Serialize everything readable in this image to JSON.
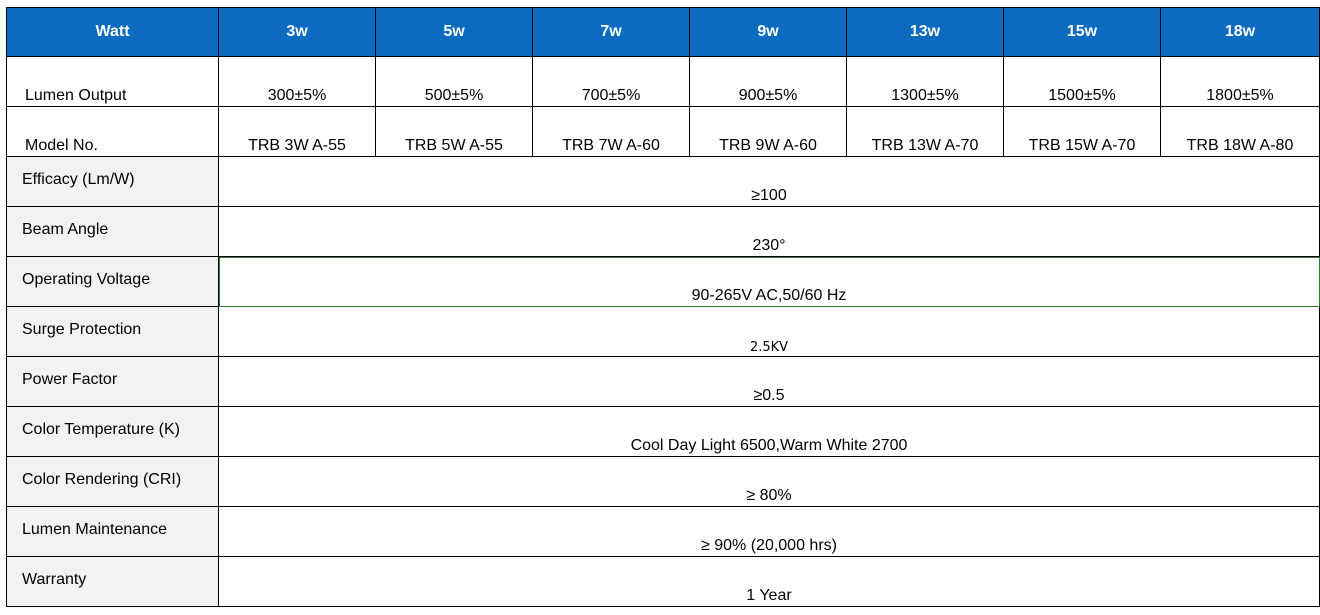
{
  "header": {
    "label": "Watt",
    "columns": [
      "3w",
      "5w",
      "7w",
      "9w",
      "13w",
      "15w",
      "18w"
    ]
  },
  "lumen_row": {
    "label": "Lumen Output",
    "values": [
      "300±5%",
      "500±5%",
      "700±5%",
      "900±5%",
      "1300±5%",
      "1500±5%",
      "1800±5%"
    ]
  },
  "model_row": {
    "label": "Model No.",
    "values": [
      "TRB 3W A-55",
      "TRB 5W A-55",
      "TRB 7W A-60",
      "TRB 9W A-60",
      "TRB 13W A-70",
      "TRB 15W A-70",
      "TRB 18W A-80"
    ]
  },
  "specs": [
    {
      "label": "Efficacy (Lm/W)",
      "value": "≥100"
    },
    {
      "label": "Beam Angle",
      "value": "230°"
    },
    {
      "label": "Operating Voltage",
      "value": "90-265V AC,50/60 Hz"
    },
    {
      "label": "Surge Protection",
      "value": "2.5KV"
    },
    {
      "label": "Power Factor",
      "value": "≥0.5"
    },
    {
      "label": "Color Temperature (K)",
      "value": "Cool Day Light 6500,Warm White 2700"
    },
    {
      "label": "Color Rendering (CRI)",
      "value": "≥ 80%"
    },
    {
      "label": "Lumen Maintenance",
      "value": "≥ 90% (20,000 hrs)"
    },
    {
      "label": "Warranty",
      "value": "1 Year"
    }
  ],
  "colors": {
    "header_bg": "#0a6bc1",
    "label_bg": "#f2f2f2",
    "highlight_border": "#2e7d32"
  }
}
